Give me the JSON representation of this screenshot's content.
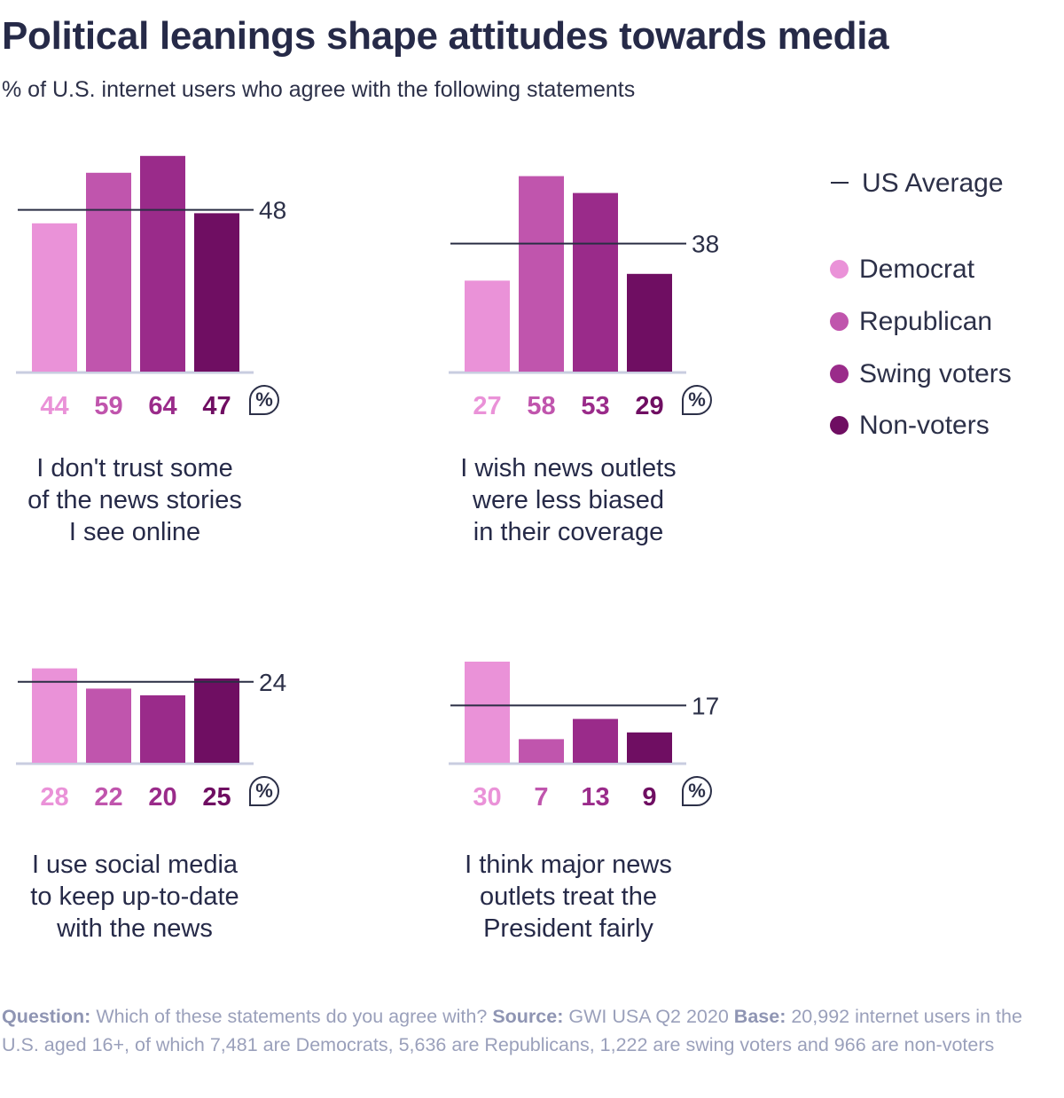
{
  "title": "Political leanings shape attitudes towards media",
  "subtitle": "% of U.S. internet users who agree with the following statements",
  "legend": {
    "average_label": "US Average",
    "items": [
      {
        "label": "Democrat",
        "color": "#ea92d8"
      },
      {
        "label": "Republican",
        "color": "#c055ad"
      },
      {
        "label": "Swing voters",
        "color": "#9a2b8a"
      },
      {
        "label": "Non-voters",
        "color": "#6f0e62"
      }
    ]
  },
  "percent_badge": "%",
  "footer": {
    "question_label": "Question:",
    "question_text": "Which of these statements do you agree with?",
    "source_label": "Source:",
    "source_text": "GWI USA Q2 2020",
    "base_label": "Base:",
    "base_text": "20,992 internet users in the U.S. aged 16+, of which 7,481 are Democrats, 5,636 are Republicans, 1,222 are swing voters and 966 are non-voters"
  },
  "chart_data": [
    {
      "type": "bar",
      "caption": "I don't trust some\nof the news stories\nI see online",
      "categories": [
        "Democrat",
        "Republican",
        "Swing voters",
        "Non-voters"
      ],
      "values": [
        44,
        59,
        64,
        47
      ],
      "average": 48
    },
    {
      "type": "bar",
      "caption": "I wish news outlets\nwere less biased\nin their coverage",
      "categories": [
        "Democrat",
        "Republican",
        "Swing voters",
        "Non-voters"
      ],
      "values": [
        27,
        58,
        53,
        29
      ],
      "average": 38
    },
    {
      "type": "bar",
      "caption": "I use social media\nto keep up-to-date\nwith the news",
      "categories": [
        "Democrat",
        "Republican",
        "Swing voters",
        "Non-voters"
      ],
      "values": [
        28,
        22,
        20,
        25
      ],
      "average": 24
    },
    {
      "type": "bar",
      "caption": "I think major news\noutlets treat the\nPresident fairly",
      "categories": [
        "Democrat",
        "Republican",
        "Swing voters",
        "Non-voters"
      ],
      "values": [
        30,
        7,
        13,
        9
      ],
      "average": 17
    }
  ]
}
